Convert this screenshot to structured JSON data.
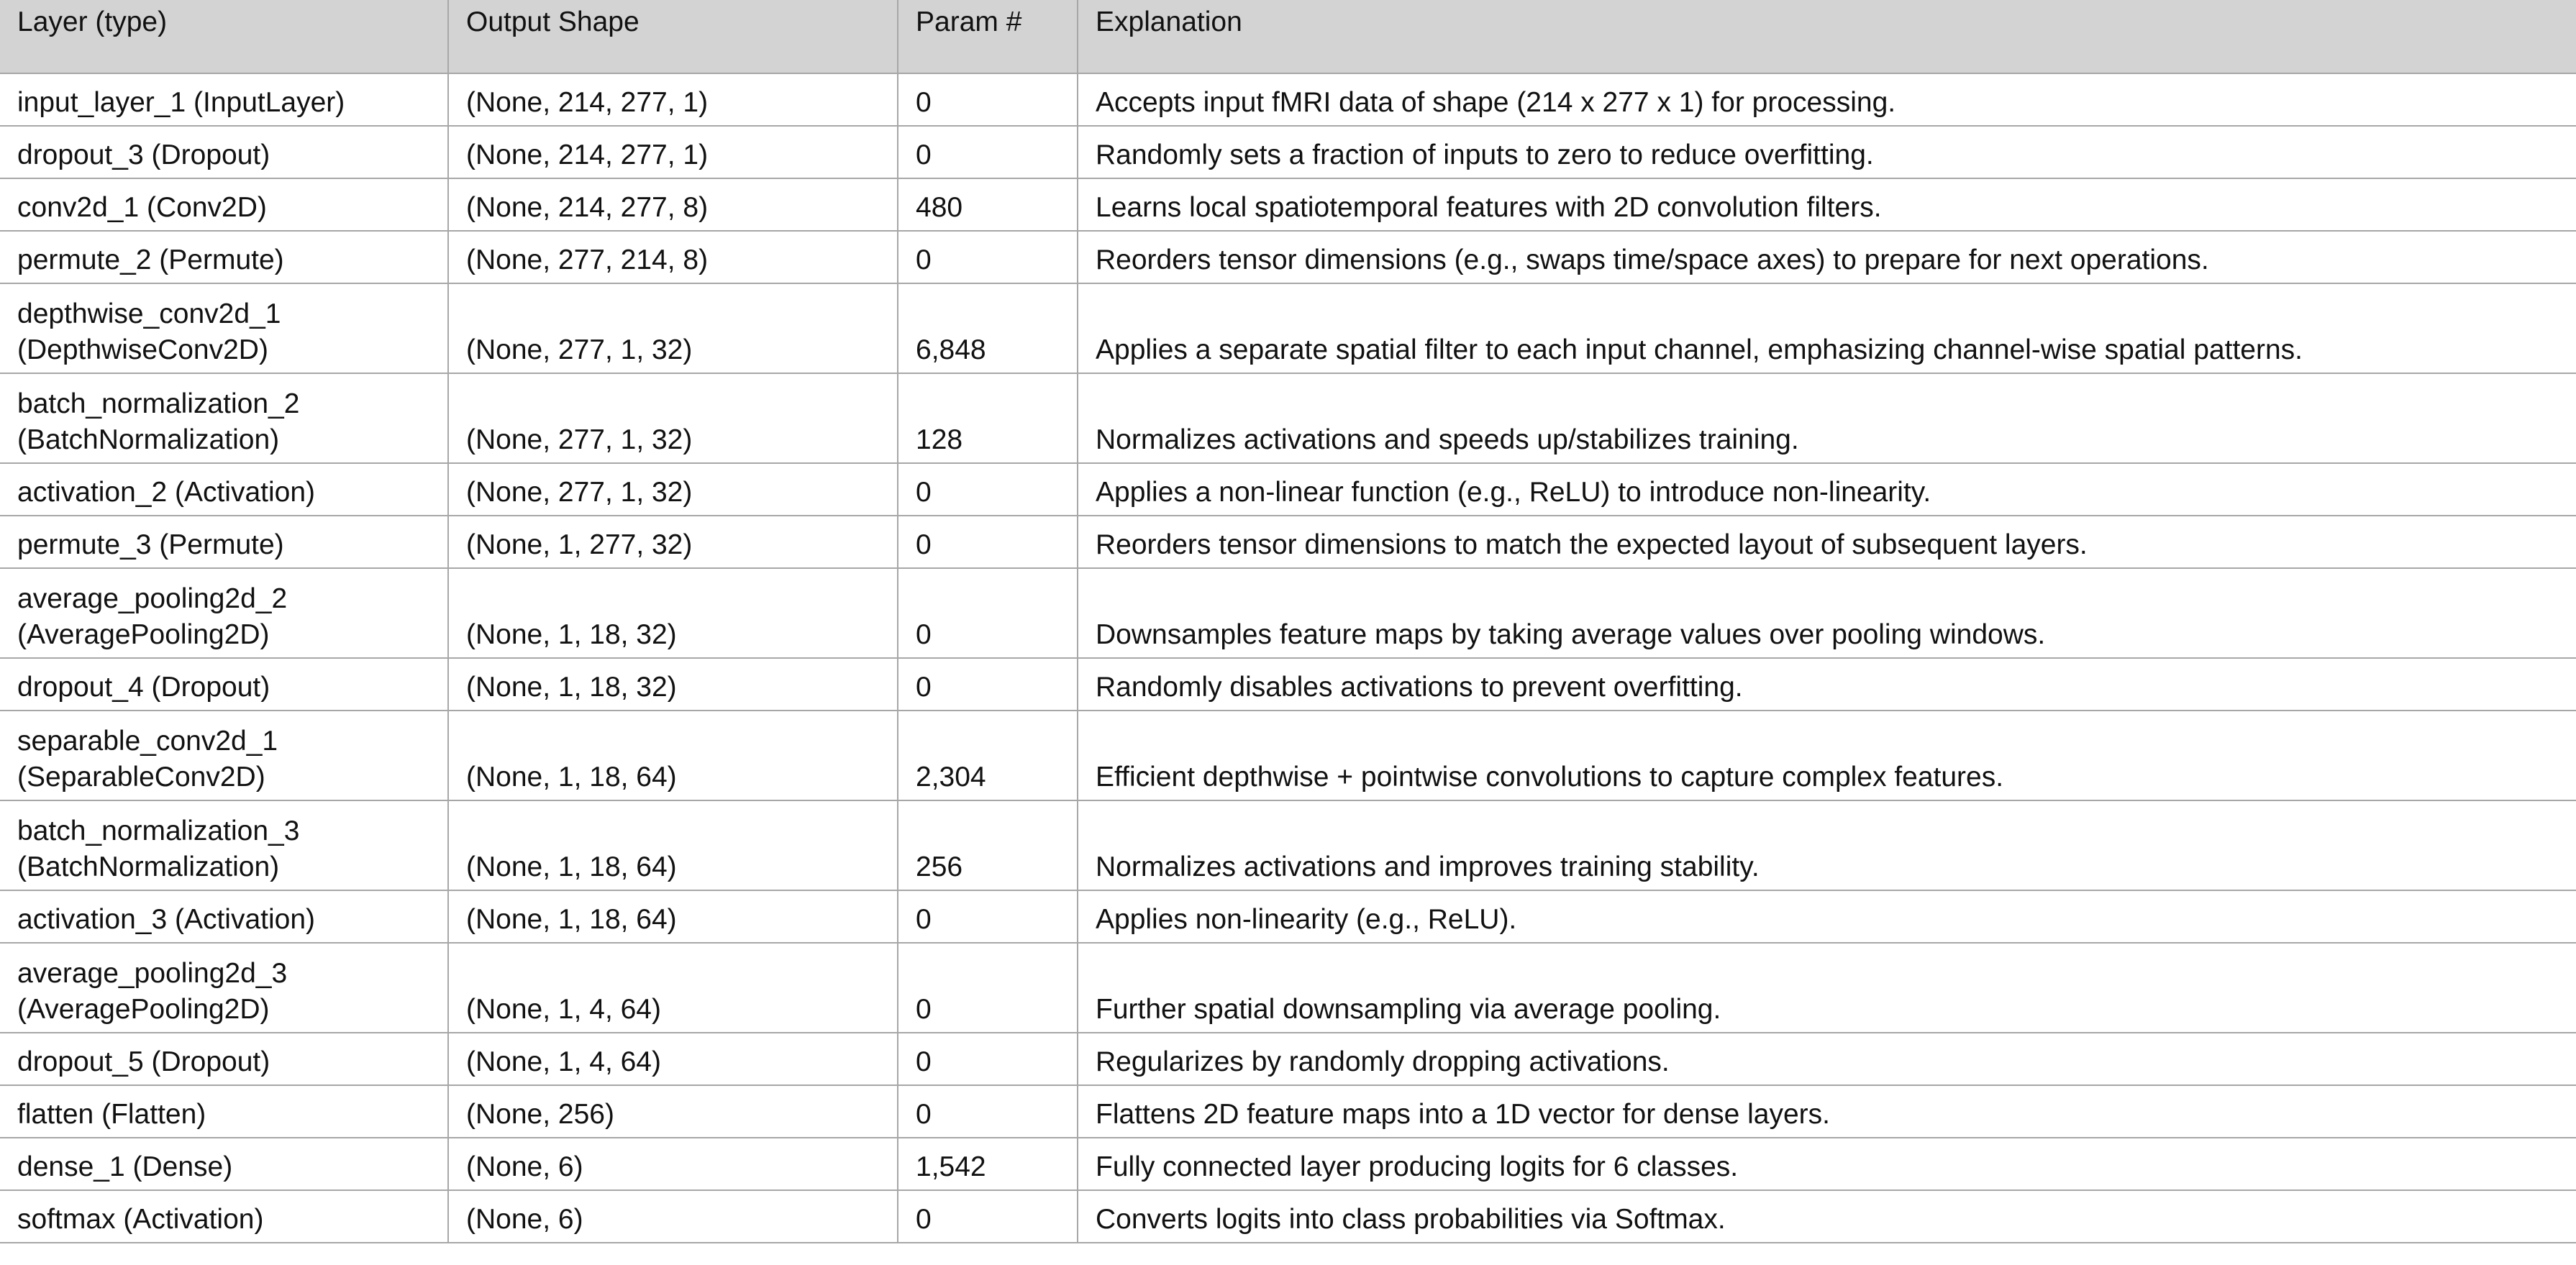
{
  "table": {
    "headers": [
      "Layer (type)",
      "Output Shape",
      "Param #",
      "Explanation"
    ],
    "rows": [
      {
        "layer": [
          "input_layer_1 (InputLayer)"
        ],
        "shape": "(None, 214, 277, 1)",
        "params": "0",
        "explanation": "Accepts input fMRI data of shape (214 x 277 x 1) for processing."
      },
      {
        "layer": [
          "dropout_3 (Dropout)"
        ],
        "shape": "(None, 214, 277, 1)",
        "params": "0",
        "explanation": "Randomly sets a fraction of inputs to zero to reduce overfitting."
      },
      {
        "layer": [
          "conv2d_1 (Conv2D)"
        ],
        "shape": "(None, 214, 277, 8)",
        "params": "480",
        "explanation": "Learns local spatiotemporal features with 2D convolution filters."
      },
      {
        "layer": [
          "permute_2 (Permute)"
        ],
        "shape": "(None, 277, 214, 8)",
        "params": "0",
        "explanation": "Reorders tensor dimensions (e.g., swaps time/space axes) to prepare for next operations."
      },
      {
        "layer": [
          "depthwise_conv2d_1",
          "(DepthwiseConv2D)"
        ],
        "shape": "(None, 277, 1, 32)",
        "params": "6,848",
        "explanation": "Applies a separate spatial filter to each input channel, emphasizing channel-wise spatial patterns."
      },
      {
        "layer": [
          "batch_normalization_2",
          "(BatchNormalization)"
        ],
        "shape": "(None, 277, 1, 32)",
        "params": "128",
        "explanation": "Normalizes activations and speeds up/stabilizes training."
      },
      {
        "layer": [
          "activation_2 (Activation)"
        ],
        "shape": "(None, 277, 1, 32)",
        "params": "0",
        "explanation": "Applies a non-linear function (e.g., ReLU) to introduce non-linearity."
      },
      {
        "layer": [
          "permute_3 (Permute)"
        ],
        "shape": "(None, 1, 277, 32)",
        "params": "0",
        "explanation": "Reorders tensor dimensions to match the expected layout of subsequent layers."
      },
      {
        "layer": [
          "average_pooling2d_2",
          "(AveragePooling2D)"
        ],
        "shape": "(None, 1, 18, 32)",
        "params": "0",
        "explanation": "Downsamples feature maps by taking average values over pooling windows."
      },
      {
        "layer": [
          "dropout_4 (Dropout)"
        ],
        "shape": "(None, 1, 18, 32)",
        "params": "0",
        "explanation": "Randomly disables activations to prevent overfitting."
      },
      {
        "layer": [
          "separable_conv2d_1",
          "(SeparableConv2D)"
        ],
        "shape": "(None, 1, 18, 64)",
        "params": "2,304",
        "explanation": "Efficient depthwise + pointwise convolutions to capture complex features."
      },
      {
        "layer": [
          "batch_normalization_3",
          "(BatchNormalization)"
        ],
        "shape": "(None, 1, 18, 64)",
        "params": "256",
        "explanation": "Normalizes activations and improves training stability."
      },
      {
        "layer": [
          "activation_3 (Activation)"
        ],
        "shape": "(None, 1, 18, 64)",
        "params": "0",
        "explanation": "Applies non-linearity (e.g., ReLU)."
      },
      {
        "layer": [
          "average_pooling2d_3",
          "(AveragePooling2D)"
        ],
        "shape": "(None, 1, 4, 64)",
        "params": "0",
        "explanation": "Further spatial downsampling via average pooling."
      },
      {
        "layer": [
          "dropout_5 (Dropout)"
        ],
        "shape": "(None, 1, 4, 64)",
        "params": "0",
        "explanation": "Regularizes by randomly dropping activations."
      },
      {
        "layer": [
          "flatten (Flatten)"
        ],
        "shape": "(None, 256)",
        "params": "0",
        "explanation": "Flattens 2D feature maps into a 1D vector for dense layers."
      },
      {
        "layer": [
          "dense_1 (Dense)"
        ],
        "shape": "(None, 6)",
        "params": "1,542",
        "explanation": "Fully connected layer producing logits for 6 classes."
      },
      {
        "layer": [
          "softmax (Activation)"
        ],
        "shape": "(None, 6)",
        "params": "0",
        "explanation": "Converts logits into class probabilities via Softmax."
      }
    ]
  }
}
